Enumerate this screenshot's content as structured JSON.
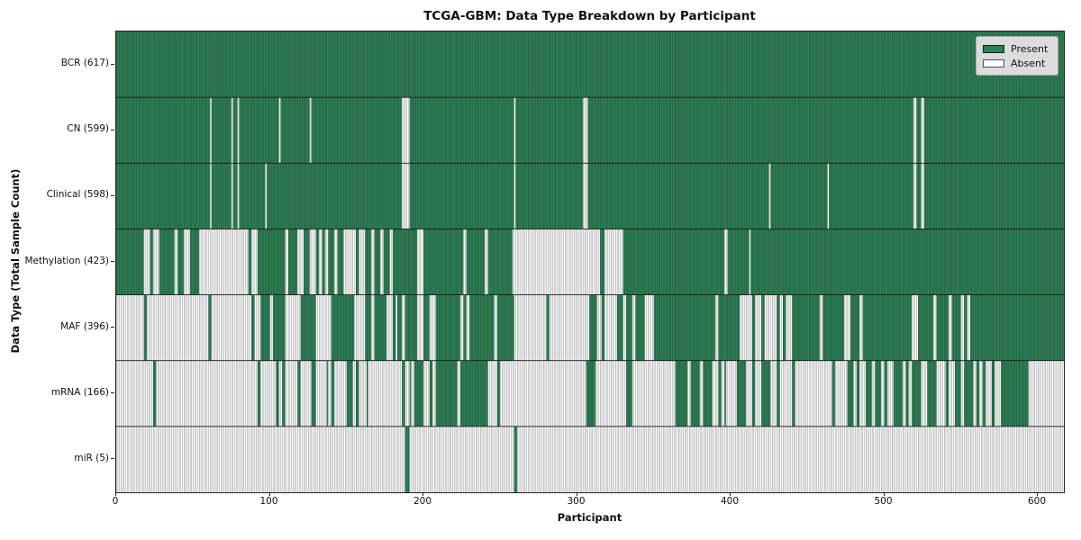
{
  "chart_data": {
    "type": "heatmap",
    "title": "TCGA-GBM: Data Type Breakdown by Participant",
    "xlabel": "Participant",
    "ylabel": "Data Type (Total Sample Count)",
    "x_ticks": [
      0,
      100,
      200,
      300,
      400,
      500,
      600
    ],
    "x_max": 617,
    "n_participants": 617,
    "grid": false,
    "legend": {
      "position": "upper right",
      "entries": [
        {
          "label": "Present",
          "color": "#2e8055"
        },
        {
          "label": "Absent",
          "color": "#ffffff"
        }
      ]
    },
    "colors": {
      "present": "#2e8055",
      "present_edge": "#1f4a33",
      "absent": "#ffffff",
      "absent_edge": "#8c8c8c",
      "row_divider": "#1a1a1a",
      "plot_border": "#222222"
    },
    "rows": [
      {
        "label": "BCR (617)",
        "total": 617,
        "pattern": {
          "type": "all"
        }
      },
      {
        "label": "CN (599)",
        "total": 599,
        "pattern": {
          "type": "absent_indices",
          "indices": [
            61,
            75,
            79,
            106,
            126,
            186,
            187,
            188,
            189,
            190,
            259,
            304,
            305,
            306,
            519,
            520,
            524,
            525
          ]
        }
      },
      {
        "label": "Clinical (598)",
        "total": 598,
        "pattern": {
          "type": "absent_indices",
          "indices": [
            61,
            75,
            79,
            97,
            186,
            187,
            188,
            189,
            190,
            259,
            304,
            305,
            306,
            425,
            463,
            519,
            520,
            524,
            525
          ]
        }
      },
      {
        "label": "Methylation (423)",
        "total": 423,
        "pattern": {
          "type": "segments",
          "segments": [
            [
              0,
              10,
              0.92
            ],
            [
              10,
              58,
              0.55
            ],
            [
              58,
              88,
              0.1
            ],
            [
              88,
              108,
              0.85
            ],
            [
              108,
              150,
              0.55
            ],
            [
              150,
              170,
              0.35
            ],
            [
              170,
              192,
              0.7
            ],
            [
              192,
              206,
              0.55
            ],
            [
              206,
              259,
              0.96
            ],
            [
              259,
              315,
              0.02
            ],
            [
              315,
              318,
              1.0
            ],
            [
              318,
              330,
              0.0
            ],
            [
              330,
              412,
              0.95
            ],
            [
              412,
              413,
              0.0
            ],
            [
              413,
              617,
              0.98
            ]
          ]
        }
      },
      {
        "label": "MAF (396)",
        "total": 396,
        "pattern": {
          "type": "segments",
          "segments": [
            [
              0,
              18,
              0.04
            ],
            [
              18,
              30,
              0.25
            ],
            [
              30,
              88,
              0.03
            ],
            [
              88,
              94,
              0.2
            ],
            [
              94,
              110,
              0.6
            ],
            [
              110,
              120,
              0.2
            ],
            [
              120,
              130,
              0.8
            ],
            [
              130,
              137,
              0.15
            ],
            [
              137,
              155,
              0.7
            ],
            [
              155,
              163,
              0.1
            ],
            [
              163,
              177,
              0.65
            ],
            [
              177,
              183,
              0.1
            ],
            [
              183,
              207,
              0.8
            ],
            [
              207,
              259,
              0.95
            ],
            [
              259,
              307,
              0.08
            ],
            [
              307,
              313,
              0.9
            ],
            [
              313,
              316,
              0.1
            ],
            [
              316,
              345,
              0.75
            ],
            [
              345,
              360,
              0.6
            ],
            [
              360,
              390,
              0.85
            ],
            [
              390,
              394,
              0.15
            ],
            [
              394,
              412,
              0.8
            ],
            [
              412,
              423,
              0.5
            ],
            [
              423,
              439,
              0.1
            ],
            [
              439,
              476,
              0.85
            ],
            [
              476,
              518,
              0.92
            ],
            [
              518,
              522,
              0.3
            ],
            [
              522,
              540,
              0.85
            ],
            [
              540,
              557,
              0.6
            ],
            [
              557,
              617,
              0.93
            ]
          ]
        }
      },
      {
        "label": "mRNA (166)",
        "total": 166,
        "pattern": {
          "type": "segments",
          "segments": [
            [
              0,
              24,
              0.0
            ],
            [
              24,
              31,
              0.3
            ],
            [
              31,
              92,
              0.0
            ],
            [
              92,
              96,
              0.8
            ],
            [
              96,
              102,
              0.2
            ],
            [
              102,
              110,
              0.6
            ],
            [
              110,
              116,
              0.15
            ],
            [
              116,
              120,
              0.7
            ],
            [
              120,
              127,
              0.05
            ],
            [
              127,
              131,
              0.7
            ],
            [
              131,
              137,
              0.1
            ],
            [
              137,
              143,
              0.5
            ],
            [
              143,
              149,
              0.15
            ],
            [
              149,
              157,
              0.6
            ],
            [
              157,
              163,
              0.2
            ],
            [
              163,
              166,
              0.7
            ],
            [
              166,
              181,
              0.12
            ],
            [
              181,
              188,
              0.55
            ],
            [
              188,
              191,
              0.1
            ],
            [
              191,
              200,
              0.8
            ],
            [
              200,
              207,
              0.5
            ],
            [
              207,
              240,
              0.68
            ],
            [
              240,
              285,
              0.05
            ],
            [
              285,
              308,
              0.08
            ],
            [
              308,
              312,
              0.75
            ],
            [
              312,
              334,
              0.08
            ],
            [
              334,
              336,
              0.8
            ],
            [
              336,
              363,
              0.1
            ],
            [
              363,
              379,
              0.65
            ],
            [
              379,
              389,
              0.2
            ],
            [
              389,
              397,
              0.65
            ],
            [
              397,
              412,
              0.4
            ],
            [
              412,
              419,
              0.6
            ],
            [
              419,
              476,
              0.33
            ],
            [
              476,
              513,
              0.65
            ],
            [
              513,
              521,
              0.4
            ],
            [
              521,
              541,
              0.6
            ],
            [
              541,
              554,
              0.35
            ],
            [
              554,
              566,
              0.65
            ],
            [
              566,
              576,
              0.12
            ],
            [
              576,
              594,
              0.75
            ],
            [
              594,
              617,
              0.02
            ]
          ]
        }
      },
      {
        "label": "miR (5)",
        "total": 5,
        "pattern": {
          "type": "present_indices",
          "indices": [
            188,
            189,
            190,
            259,
            260
          ]
        }
      }
    ]
  }
}
